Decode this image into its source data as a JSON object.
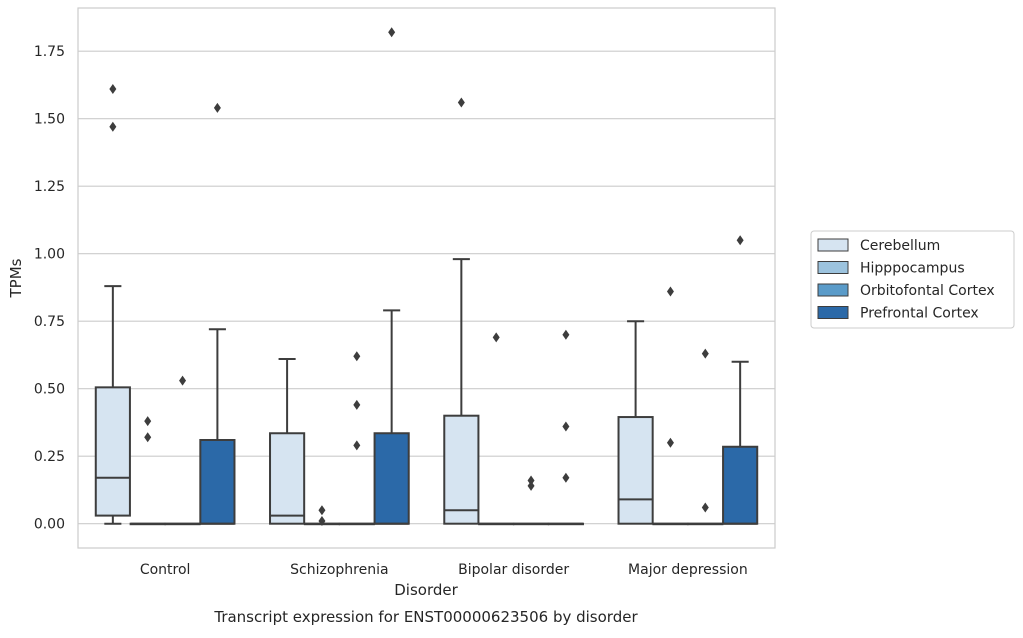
{
  "chart_data": {
    "type": "box",
    "title": "",
    "caption": "Transcript expression for ENST00000623506 by disorder",
    "xlabel": "Disorder",
    "ylabel": "TPMs",
    "categories": [
      "Control",
      "Schizophrenia",
      "Bipolar disorder",
      "Major depression"
    ],
    "ylim": [
      -0.09,
      1.91
    ],
    "yticks": [
      0.0,
      0.25,
      0.5,
      0.75,
      1.0,
      1.25,
      1.5,
      1.75
    ],
    "ytick_labels": [
      "0.00",
      "0.25",
      "0.50",
      "0.75",
      "1.00",
      "1.25",
      "1.50",
      "1.75"
    ],
    "grid": "horizontal",
    "legend_position": "right",
    "series": [
      {
        "name": "Cerebellum",
        "color": "#d6e4f1",
        "boxes": [
          {
            "category": "Control",
            "whisker_low": 0.0,
            "q1": 0.03,
            "median": 0.17,
            "q3": 0.505,
            "whisker_high": 0.88,
            "outliers": [
              1.47,
              1.61
            ]
          },
          {
            "category": "Schizophrenia",
            "whisker_low": 0.0,
            "q1": 0.0,
            "median": 0.03,
            "q3": 0.335,
            "whisker_high": 0.61,
            "outliers": []
          },
          {
            "category": "Bipolar disorder",
            "whisker_low": 0.0,
            "q1": 0.0,
            "median": 0.05,
            "q3": 0.4,
            "whisker_high": 0.98,
            "outliers": [
              1.56
            ]
          },
          {
            "category": "Major depression",
            "whisker_low": 0.0,
            "q1": 0.0,
            "median": 0.09,
            "q3": 0.395,
            "whisker_high": 0.75,
            "outliers": []
          }
        ]
      },
      {
        "name": "Hipppocampus",
        "color": "#9cc3de",
        "boxes": [
          {
            "category": "Control",
            "whisker_low": 0.0,
            "q1": 0.0,
            "median": 0.0,
            "q3": 0.0,
            "whisker_high": 0.0,
            "outliers": [
              0.32,
              0.38
            ]
          },
          {
            "category": "Schizophrenia",
            "whisker_low": 0.0,
            "q1": 0.0,
            "median": 0.0,
            "q3": 0.0,
            "whisker_high": 0.0,
            "outliers": [
              0.01,
              0.05
            ]
          },
          {
            "category": "Bipolar disorder",
            "whisker_low": 0.0,
            "q1": 0.0,
            "median": 0.0,
            "q3": 0.0,
            "whisker_high": 0.0,
            "outliers": [
              0.69
            ]
          },
          {
            "category": "Major depression",
            "whisker_low": 0.0,
            "q1": 0.0,
            "median": 0.0,
            "q3": 0.0,
            "whisker_high": 0.0,
            "outliers": [
              0.3,
              0.86
            ]
          }
        ]
      },
      {
        "name": "Orbitofontal Cortex",
        "color": "#5a9bc9",
        "boxes": [
          {
            "category": "Control",
            "whisker_low": 0.0,
            "q1": 0.0,
            "median": 0.0,
            "q3": 0.0,
            "whisker_high": 0.0,
            "outliers": [
              0.53
            ]
          },
          {
            "category": "Schizophrenia",
            "whisker_low": 0.0,
            "q1": 0.0,
            "median": 0.0,
            "q3": 0.0,
            "whisker_high": 0.0,
            "outliers": [
              0.29,
              0.44,
              0.62
            ]
          },
          {
            "category": "Bipolar disorder",
            "whisker_low": 0.0,
            "q1": 0.0,
            "median": 0.0,
            "q3": 0.0,
            "whisker_high": 0.0,
            "outliers": [
              0.14,
              0.16
            ]
          },
          {
            "category": "Major depression",
            "whisker_low": 0.0,
            "q1": 0.0,
            "median": 0.0,
            "q3": 0.0,
            "whisker_high": 0.0,
            "outliers": [
              0.06,
              0.63
            ]
          }
        ]
      },
      {
        "name": "Prefrontal Cortex",
        "color": "#2b69a8",
        "boxes": [
          {
            "category": "Control",
            "whisker_low": 0.0,
            "q1": 0.0,
            "median": 0.0,
            "q3": 0.31,
            "whisker_high": 0.72,
            "outliers": [
              1.54
            ]
          },
          {
            "category": "Schizophrenia",
            "whisker_low": 0.0,
            "q1": 0.0,
            "median": 0.0,
            "q3": 0.335,
            "whisker_high": 0.79,
            "outliers": [
              1.82
            ]
          },
          {
            "category": "Bipolar disorder",
            "whisker_low": 0.0,
            "q1": 0.0,
            "median": 0.0,
            "q3": 0.0,
            "whisker_high": 0.0,
            "outliers": [
              0.17,
              0.36,
              0.7
            ]
          },
          {
            "category": "Major depression",
            "whisker_low": 0.0,
            "q1": 0.0,
            "median": 0.0,
            "q3": 0.285,
            "whisker_high": 0.6,
            "outliers": [
              1.05
            ]
          }
        ]
      }
    ]
  }
}
